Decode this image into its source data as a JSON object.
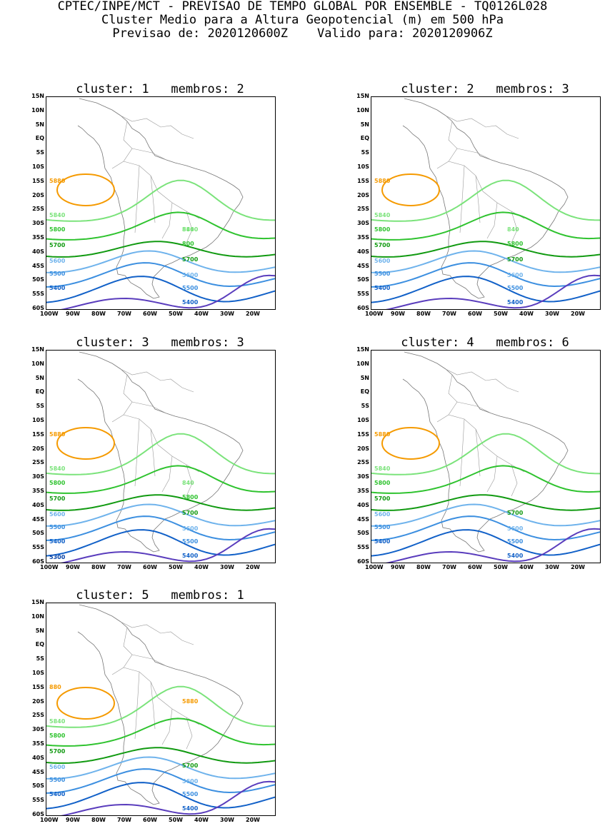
{
  "header": {
    "line1": "CPTEC/INPE/MCT - PREVISAO DE TEMPO GLOBAL POR ENSEMBLE - TQ0126L028",
    "line2": "Cluster Medio para a Altura Geopotencial (m) em 500 hPa",
    "line3": "Previsao de: 2020120600Z    Valido para: 2020120906Z"
  },
  "axes": {
    "lat_labels": [
      "15N",
      "10N",
      "5N",
      "EQ",
      "5S",
      "10S",
      "15S",
      "20S",
      "25S",
      "30S",
      "35S",
      "40S",
      "45S",
      "50S",
      "55S",
      "60S"
    ],
    "lon_labels": [
      "100W",
      "90W",
      "80W",
      "70W",
      "60W",
      "50W",
      "40W",
      "30W",
      "20W"
    ]
  },
  "contour_colors": {
    "5880": "#f59a00",
    "5840": "#7be37b",
    "5800": "#2fc32f",
    "5700": "#119a11",
    "5600": "#6fb3ec",
    "5500": "#3c8fe0",
    "5400": "#1261c8",
    "5300": "#0a45a8",
    "deep": "#5a3dbd"
  },
  "panels": [
    {
      "title": "cluster: 1   membros: 2",
      "labels": [
        {
          "text": "5880",
          "color": "5880"
        },
        {
          "text": "5840",
          "color": "5840"
        },
        {
          "text": "5840",
          "color": "5840"
        },
        {
          "text": "840",
          "color": "5840"
        },
        {
          "text": "5800",
          "color": "5800"
        },
        {
          "text": "800",
          "color": "5800"
        },
        {
          "text": "5700",
          "color": "5700"
        },
        {
          "text": "5700",
          "color": "5700"
        },
        {
          "text": "5600",
          "color": "5600"
        },
        {
          "text": "5600",
          "color": "5600"
        },
        {
          "text": "5500",
          "color": "5500"
        },
        {
          "text": "5500",
          "color": "5500"
        },
        {
          "text": "5400",
          "color": "5400"
        },
        {
          "text": "5400",
          "color": "5400"
        }
      ]
    },
    {
      "title": "cluster: 2   membros: 3",
      "labels": [
        {
          "text": "5880",
          "color": "5880"
        },
        {
          "text": "5840",
          "color": "5840"
        },
        {
          "text": "840",
          "color": "5840"
        },
        {
          "text": "5800",
          "color": "5800"
        },
        {
          "text": "5800",
          "color": "5800"
        },
        {
          "text": "5700",
          "color": "5700"
        },
        {
          "text": "5700",
          "color": "5700"
        },
        {
          "text": "5600",
          "color": "5600"
        },
        {
          "text": "5600",
          "color": "5600"
        },
        {
          "text": "5500",
          "color": "5500"
        },
        {
          "text": "5500",
          "color": "5500"
        },
        {
          "text": "5400",
          "color": "5400"
        },
        {
          "text": "5400",
          "color": "5400"
        }
      ]
    },
    {
      "title": "cluster: 3   membros: 3",
      "labels": [
        {
          "text": "5880",
          "color": "5880"
        },
        {
          "text": "5840",
          "color": "5840"
        },
        {
          "text": "840",
          "color": "5840"
        },
        {
          "text": "5800",
          "color": "5800"
        },
        {
          "text": "5800",
          "color": "5800"
        },
        {
          "text": "5700",
          "color": "5700"
        },
        {
          "text": "5700",
          "color": "5700"
        },
        {
          "text": "5600",
          "color": "5600"
        },
        {
          "text": "5600",
          "color": "5600"
        },
        {
          "text": "5500",
          "color": "5500"
        },
        {
          "text": "5500",
          "color": "5500"
        },
        {
          "text": "5400",
          "color": "5400"
        },
        {
          "text": "5400",
          "color": "5400"
        },
        {
          "text": "5300",
          "color": "5300"
        }
      ]
    },
    {
      "title": "cluster: 4   membros: 6",
      "labels": [
        {
          "text": "5880",
          "color": "5880"
        },
        {
          "text": "5840",
          "color": "5840"
        },
        {
          "text": "5800",
          "color": "5800"
        },
        {
          "text": "5700",
          "color": "5700"
        },
        {
          "text": "5700",
          "color": "5700"
        },
        {
          "text": "5600",
          "color": "5600"
        },
        {
          "text": "5600",
          "color": "5600"
        },
        {
          "text": "5500",
          "color": "5500"
        },
        {
          "text": "5500",
          "color": "5500"
        },
        {
          "text": "5400",
          "color": "5400"
        },
        {
          "text": "5400",
          "color": "5400"
        }
      ]
    },
    {
      "title": "cluster: 5   membros: 1",
      "labels": [
        {
          "text": "880",
          "color": "5880"
        },
        {
          "text": "5880",
          "color": "5880"
        },
        {
          "text": "5840",
          "color": "5840"
        },
        {
          "text": "5800",
          "color": "5800"
        },
        {
          "text": "5700",
          "color": "5700"
        },
        {
          "text": "5700",
          "color": "5700"
        },
        {
          "text": "5600",
          "color": "5600"
        },
        {
          "text": "5600",
          "color": "5600"
        },
        {
          "text": "5500",
          "color": "5500"
        },
        {
          "text": "5500",
          "color": "5500"
        },
        {
          "text": "5400",
          "color": "5400"
        },
        {
          "text": "5400",
          "color": "5400"
        }
      ]
    }
  ]
}
